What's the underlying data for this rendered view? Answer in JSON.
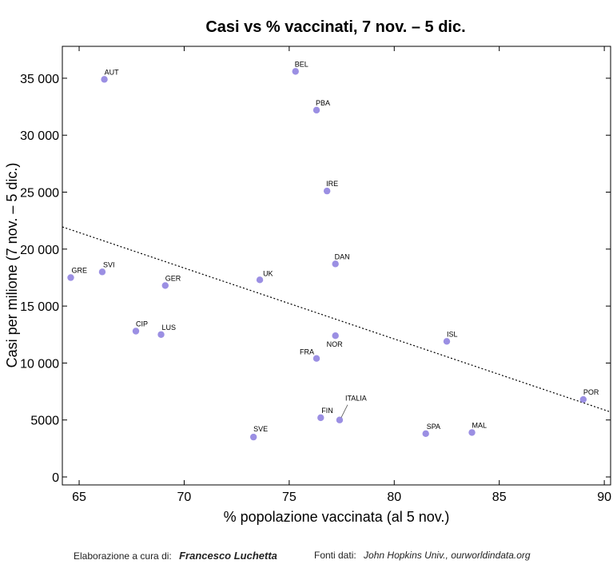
{
  "chart_data": {
    "type": "scatter",
    "title": "Casi vs % vaccinati, 7 nov. – 5 dic.",
    "xlabel": "% popolazione vaccinata (al 5 nov.)",
    "ylabel": "Casi per milione (7 nov. – 5 dic.)",
    "xlim": [
      64.2,
      90.3
    ],
    "ylim": [
      -700,
      37800
    ],
    "x_ticks": [
      65,
      70,
      75,
      80,
      85,
      90
    ],
    "y_ticks": [
      0,
      5000,
      10000,
      15000,
      20000,
      25000,
      30000,
      35000
    ],
    "x_tick_labels": [
      "65",
      "70",
      "75",
      "80",
      "85",
      "90"
    ],
    "y_tick_labels": [
      "0",
      "5000",
      "10 000",
      "15 000",
      "20 000",
      "25 000",
      "30 000",
      "35 000"
    ],
    "grid": false,
    "legend": "none",
    "marker_color": "#9b8fe3",
    "trendline": {
      "style": "dotted",
      "points": [
        [
          64.2,
          21950
        ],
        [
          90.3,
          5700
        ]
      ]
    },
    "points": [
      {
        "label": "AUT",
        "x": 66.2,
        "y": 34900
      },
      {
        "label": "BEL",
        "x": 75.3,
        "y": 35600
      },
      {
        "label": "PBA",
        "x": 76.3,
        "y": 32200
      },
      {
        "label": "IRE",
        "x": 76.8,
        "y": 25100
      },
      {
        "label": "DAN",
        "x": 77.2,
        "y": 18700
      },
      {
        "label": "GRE",
        "x": 64.6,
        "y": 17500
      },
      {
        "label": "SVI",
        "x": 66.1,
        "y": 18000
      },
      {
        "label": "UK",
        "x": 73.6,
        "y": 17300
      },
      {
        "label": "GER",
        "x": 69.1,
        "y": 16800
      },
      {
        "label": "CIP",
        "x": 67.7,
        "y": 12800
      },
      {
        "label": "LUS",
        "x": 68.9,
        "y": 12500
      },
      {
        "label": "NOR",
        "x": 77.2,
        "y": 12400
      },
      {
        "label": "ISL",
        "x": 82.5,
        "y": 11900
      },
      {
        "label": "FRA",
        "x": 76.3,
        "y": 10400
      },
      {
        "label": "POR",
        "x": 89.0,
        "y": 6800
      },
      {
        "label": "FIN",
        "x": 76.5,
        "y": 5200
      },
      {
        "label": "ITALIA",
        "x": 77.4,
        "y": 5000
      },
      {
        "label": "SPA",
        "x": 81.5,
        "y": 3800
      },
      {
        "label": "MAL",
        "x": 83.7,
        "y": 3900
      },
      {
        "label": "SVE",
        "x": 73.3,
        "y": 3500
      }
    ]
  },
  "footer": {
    "credit_prefix": "Elaborazione a cura di:",
    "credit_name": "Francesco Luchetta",
    "sources_prefix": "Fonti dati:",
    "sources": "John Hopkins Univ., ourworldindata.org"
  }
}
